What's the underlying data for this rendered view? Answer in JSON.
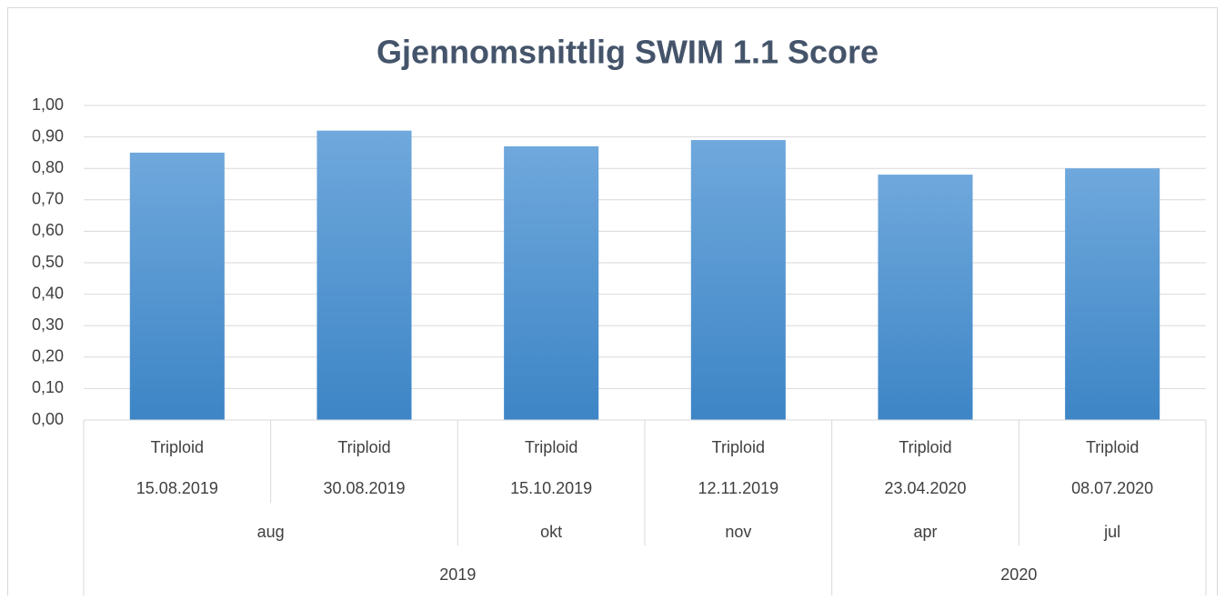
{
  "chart_data": {
    "type": "bar",
    "title": "Gjennomsnittlig SWIM 1.1 Score",
    "categories": [
      "Triploid",
      "Triploid",
      "Triploid",
      "Triploid",
      "Triploid",
      "Triploid"
    ],
    "dates": [
      "15.08.2019",
      "30.08.2019",
      "15.10.2019",
      "12.11.2019",
      "23.04.2020",
      "08.07.2020"
    ],
    "months": [
      {
        "label": "aug",
        "count": 2
      },
      {
        "label": "okt",
        "count": 1
      },
      {
        "label": "nov",
        "count": 1
      },
      {
        "label": "apr",
        "count": 1
      },
      {
        "label": "jul",
        "count": 1
      }
    ],
    "years": [
      {
        "label": "2019",
        "count": 4
      },
      {
        "label": "2020",
        "count": 2
      }
    ],
    "values": [
      0.85,
      0.92,
      0.87,
      0.89,
      0.78,
      0.8
    ],
    "color": [
      "#6fa8dc",
      "#3d85c6"
    ],
    "ylim": [
      0,
      1
    ],
    "yticks": [
      {
        "value": 0,
        "label": "0,00"
      },
      {
        "value": 0.1,
        "label": "0,10"
      },
      {
        "value": 0.2,
        "label": "0,20"
      },
      {
        "value": 0.3,
        "label": "0,30"
      },
      {
        "value": 0.4,
        "label": "0,40"
      },
      {
        "value": 0.5,
        "label": "0,50"
      },
      {
        "value": 0.6,
        "label": "0,60"
      },
      {
        "value": 0.7,
        "label": "0,70"
      },
      {
        "value": 0.8,
        "label": "0,80"
      },
      {
        "value": 0.9,
        "label": "0,90"
      },
      {
        "value": 1,
        "label": "1,00"
      }
    ],
    "grid": true
  }
}
